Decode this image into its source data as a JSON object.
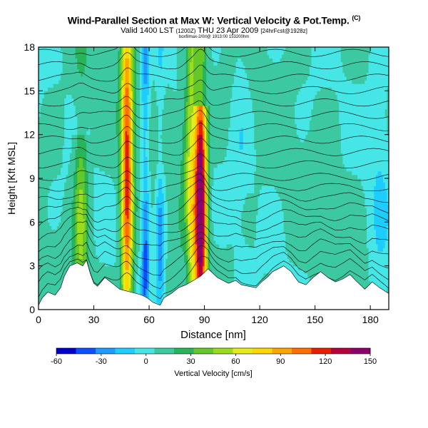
{
  "header": {
    "title": "Wind-Parallel Section at Max W: Vertical Velocity & Pot.Temp.",
    "title_mark": "(C)",
    "valid_prefix": "Valid 1400 LST",
    "valid_code": "(1200Z)",
    "valid_rest": "THU 23 Apr 2009",
    "forecast_note": "[24hrFcst@1928z]",
    "run_line": "boxfilmax-2/0rl@ 1913:00 153200hm"
  },
  "chart_data": {
    "type": "heatmap",
    "xlabel": "Distance [nm]",
    "ylabel": "Height [Kft MSL]",
    "x_ticks": [
      0,
      30,
      60,
      90,
      120,
      150,
      180
    ],
    "y_ticks": [
      0,
      3,
      6,
      9,
      12,
      15,
      18
    ],
    "xlim": [
      0,
      190
    ],
    "ylim": [
      0,
      18
    ],
    "colorbar": {
      "label": "Vertical Velocity [cm/s]",
      "tick_labels": [
        -60,
        -30,
        0,
        30,
        60,
        90,
        120,
        150
      ],
      "min": -60,
      "max": 150,
      "colors": [
        "#0000c8",
        "#0a50ff",
        "#1e9bff",
        "#1ecdff",
        "#46e6e6",
        "#3cc8a0",
        "#28b45a",
        "#64c828",
        "#9bdc1e",
        "#e6eb1e",
        "#ffd700",
        "#ffa500",
        "#ff6e00",
        "#e61e00",
        "#b4003c",
        "#8c006e"
      ]
    },
    "updraft_columns": [
      {
        "x": 48,
        "max_w": 110,
        "z_top": 18
      },
      {
        "x": 88,
        "max_w": 150,
        "z_top": 14
      },
      {
        "x": 82,
        "max_w": 60,
        "z_top": 18
      },
      {
        "x": 23,
        "max_w": 40,
        "z_top": 12
      }
    ],
    "downdraft_columns": [
      {
        "x": 58,
        "min_w": -45,
        "z_top": 18
      },
      {
        "x": 66,
        "min_w": -35,
        "z_top": 10
      },
      {
        "x": 80,
        "min_w": -25,
        "z_top": 18
      }
    ],
    "terrain_height": [
      [
        0,
        0.3
      ],
      [
        2,
        0.8
      ],
      [
        5,
        1.2
      ],
      [
        9,
        1.0
      ],
      [
        12,
        1.5
      ],
      [
        14,
        2.3
      ],
      [
        17,
        3.0
      ],
      [
        21,
        3.2
      ],
      [
        24,
        3.0
      ],
      [
        26,
        3.4
      ],
      [
        28,
        2.5
      ],
      [
        30,
        1.8
      ],
      [
        32,
        1.6
      ],
      [
        34,
        1.9
      ],
      [
        36,
        2.2
      ],
      [
        38,
        2.0
      ],
      [
        41,
        1.7
      ],
      [
        44,
        1.4
      ],
      [
        47,
        1.3
      ],
      [
        50,
        1.2
      ],
      [
        53,
        1.1
      ],
      [
        56,
        1.0
      ],
      [
        59,
        0.8
      ],
      [
        62,
        0.5
      ],
      [
        66,
        0.3
      ],
      [
        68,
        0.8
      ],
      [
        72,
        1.1
      ],
      [
        76,
        1.5
      ],
      [
        80,
        1.7
      ],
      [
        84,
        2.0
      ],
      [
        88,
        2.3
      ],
      [
        92,
        2.8
      ],
      [
        97,
        2.2
      ],
      [
        103,
        1.8
      ],
      [
        107,
        2.0
      ],
      [
        110,
        1.7
      ],
      [
        114,
        1.6
      ],
      [
        118,
        1.5
      ],
      [
        121,
        1.9
      ],
      [
        124,
        2.2
      ],
      [
        127,
        2.6
      ],
      [
        130,
        2.8
      ],
      [
        133,
        3.0
      ],
      [
        137,
        2.6
      ],
      [
        141,
        1.9
      ],
      [
        145,
        1.7
      ],
      [
        149,
        2.2
      ],
      [
        153,
        2.6
      ],
      [
        157,
        2.2
      ],
      [
        161,
        1.9
      ],
      [
        165,
        2.1
      ],
      [
        169,
        2.4
      ],
      [
        172,
        2.0
      ],
      [
        177,
        1.4
      ],
      [
        181,
        1.9
      ],
      [
        185,
        1.5
      ],
      [
        190,
        1.1
      ]
    ],
    "isentrope_count": 22
  }
}
